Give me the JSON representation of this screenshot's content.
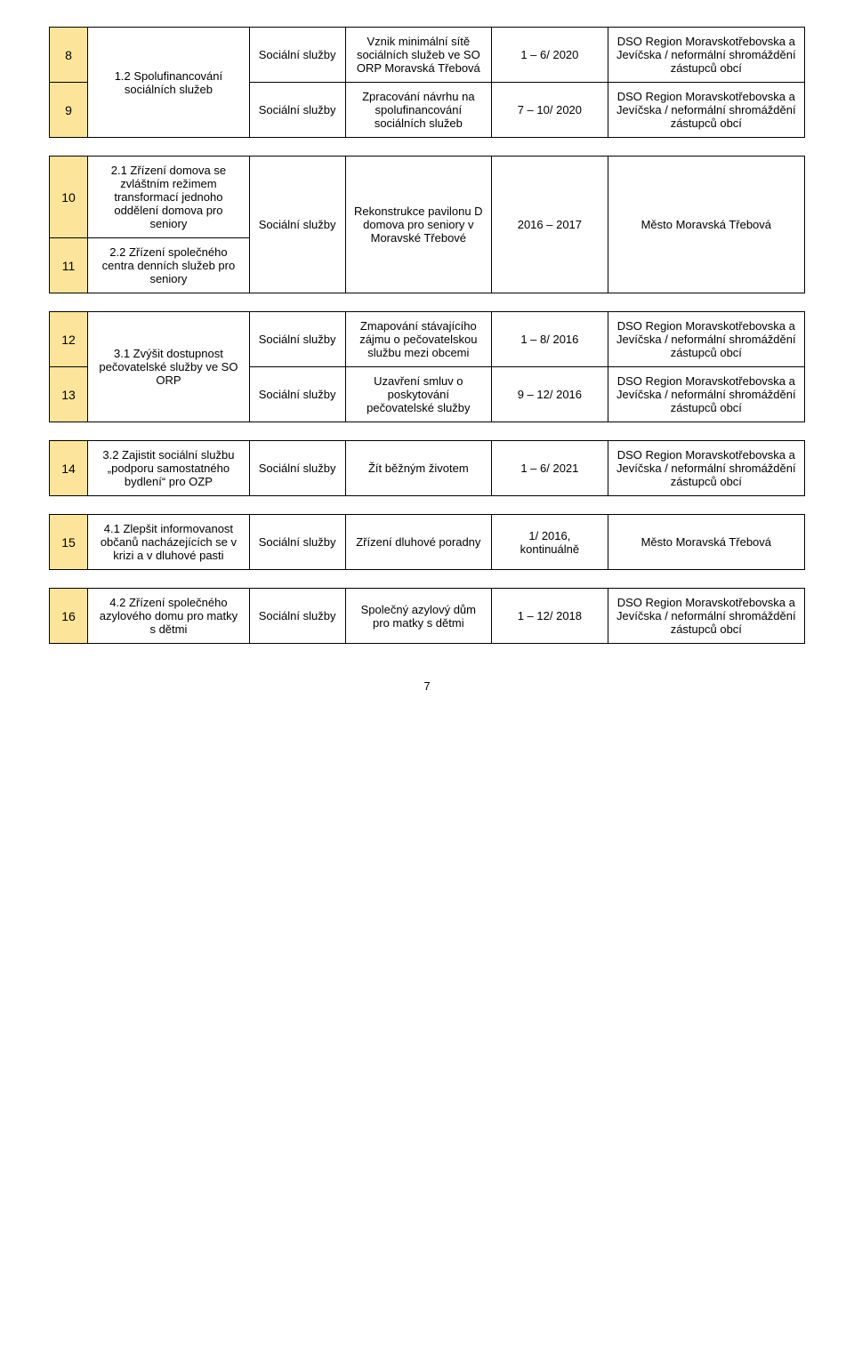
{
  "table1": {
    "rows": [
      {
        "num": "8",
        "goal": "1.2 Spolufinancování sociálních služeb",
        "cat": "Sociální služby",
        "desc": "Vznik minimální sítě sociálních služeb ve SO ORP Moravská Třebová",
        "date": "1 – 6/ 2020",
        "resp": "DSO Region Moravskotřebovska a Jevíčska / neformální shromáždění zástupců obcí"
      },
      {
        "num": "9",
        "cat": "Sociální služby",
        "desc": "Zpracování návrhu na spolufinan­cování sociálních služeb",
        "date": "7 – 10/ 2020",
        "resp": "DSO Region Moravskotřebovska a Jevíčska / neformální shromáždění zástupců obcí"
      }
    ]
  },
  "table2": {
    "rows": [
      {
        "num": "10",
        "goal": "2.1 Zřízení domova se zvláštním režimem transformací jednoho oddělení domova pro seniory",
        "cat": "Sociální služby",
        "desc": "Rekonstrukce pavilonu D domova pro seniory v Moravské Třebové",
        "date": "2016 – 2017",
        "resp": "Město Moravská Třebová"
      },
      {
        "num": "11",
        "goal": "2.2 Zřízení společného centra denních služeb pro seniory"
      }
    ]
  },
  "table3": {
    "rows": [
      {
        "num": "12",
        "goal": "3.1 Zvýšit dostupnost pečovatelské služby ve SO ORP",
        "cat": "Sociální služby",
        "desc": "Zmapování stávajícího zájmu o pečovatelskou službu mezi obcemi",
        "date": "1 – 8/ 2016",
        "resp": "DSO Region Moravskotřebovska a Jevíčska / neformální shromáždění zástupců obcí"
      },
      {
        "num": "13",
        "cat": "Sociální služby",
        "desc": "Uzavření smluv o poskytování pečovatelské služby",
        "date": "9 – 12/ 2016",
        "resp": "DSO Region Moravskotřebovska a Jevíčska / neformální shromáždění zástupců obcí"
      }
    ]
  },
  "table4": {
    "rows": [
      {
        "num": "14",
        "goal": "3.2 Zajistit sociální službu „podporu samostatného bydlení“ pro OZP",
        "cat": "Sociální služby",
        "desc": "Žít běžným životem",
        "date": "1 – 6/ 2021",
        "resp": "DSO Region Moravskotřebovska a Jevíčska / neformální shromáždění zástupců obcí"
      }
    ]
  },
  "table5": {
    "rows": [
      {
        "num": "15",
        "goal": "4.1 Zlepšit informovanost občanů nacházejících se v krizi a v dluhové pasti",
        "cat": "Sociální služby",
        "desc": "Zřízení dluhové poradny",
        "date": "1/ 2016, kontinuálně",
        "resp": "Město Moravská Třebová"
      }
    ]
  },
  "table6": {
    "rows": [
      {
        "num": "16",
        "goal": "4.2 Zřízení společného azylového domu pro matky s dětmi",
        "cat": "Sociální služby",
        "desc": "Společný azylový dům pro matky s dětmi",
        "date": "1 – 12/ 2018",
        "resp": "DSO Region Moravskotřebovska a Jevíčska / neformální shromáždění zástupců obcí"
      }
    ]
  },
  "page_number": "7"
}
